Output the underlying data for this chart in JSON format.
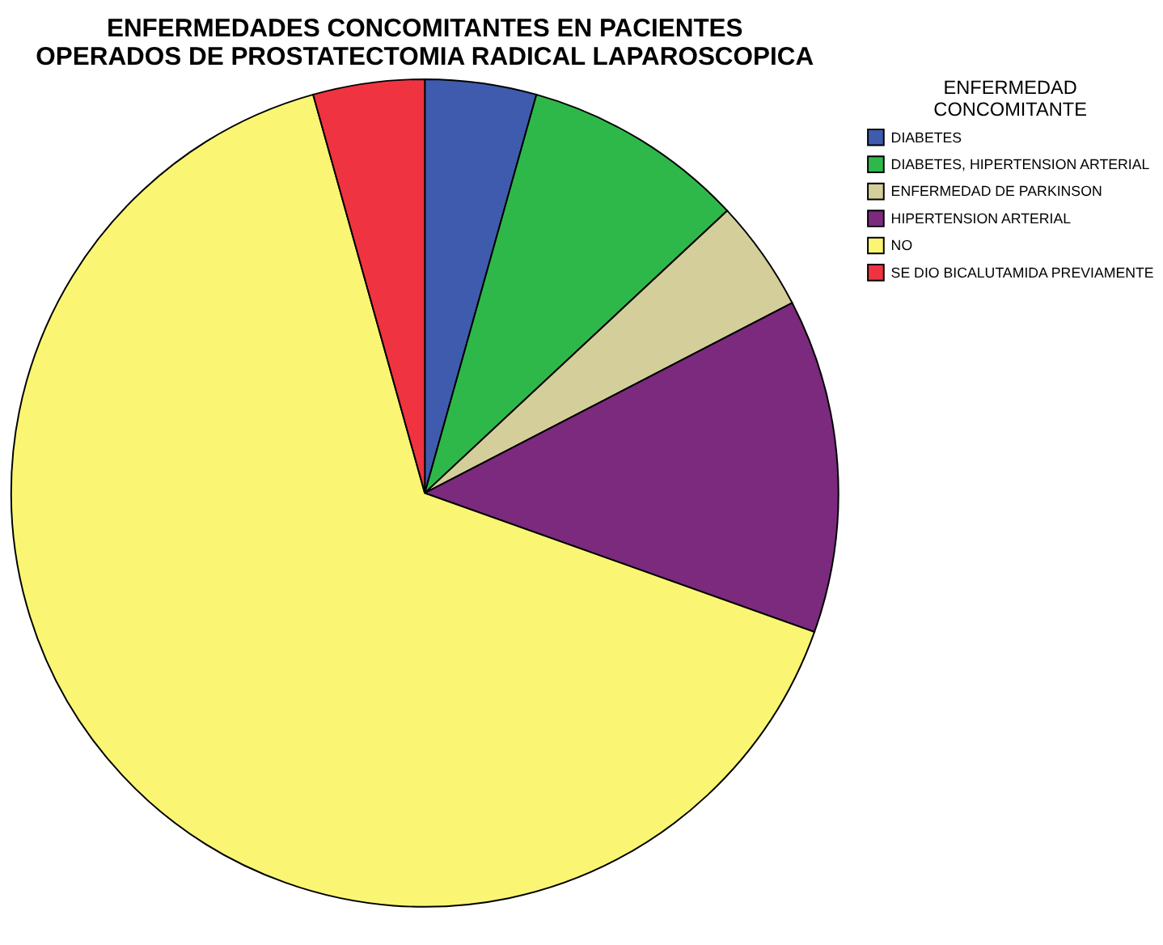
{
  "chart_data": {
    "type": "pie",
    "title": "ENFERMEDADES CONCOMITANTES EN PACIENTES OPERADOS DE PROSTATECTOMIA RADICAL LAPAROSCOPICA",
    "legend_title": "ENFERMEDAD CONCOMITANTE",
    "categories": [
      "DIABETES",
      "DIABETES, HIPERTENSION ARTERIAL",
      "ENFERMEDAD DE PARKINSON",
      "HIPERTENSION ARTERIAL",
      "NO",
      "SE DIO BICALUTAMIDA PREVIAMENTE"
    ],
    "values": [
      4.35,
      8.7,
      4.35,
      13.05,
      65.2,
      4.35
    ],
    "colors": [
      "#3f5bad",
      "#2fb84a",
      "#d4cf9a",
      "#7b2a7e",
      "#faf674",
      "#f03340"
    ],
    "legend": "top right"
  }
}
